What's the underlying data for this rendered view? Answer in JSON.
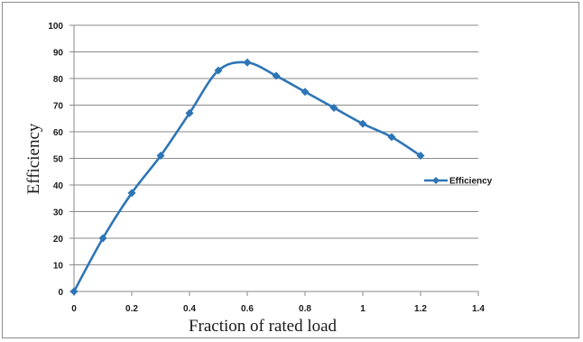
{
  "chart_data": {
    "type": "line",
    "xlabel": "Fraction of rated load",
    "ylabel": "Efficiency",
    "xlim": [
      0,
      1.4
    ],
    "ylim": [
      0,
      100
    ],
    "xticks": [
      "0",
      "0.2",
      "0.4",
      "0.6",
      "0.8",
      "1",
      "1.2",
      "1.4"
    ],
    "yticks": [
      "0",
      "10",
      "20",
      "30",
      "40",
      "50",
      "60",
      "70",
      "80",
      "90",
      "100"
    ],
    "grid": "horizontal",
    "legend_position": "right",
    "series": [
      {
        "name": "Efficiency",
        "color": "#2e75b6",
        "marker": "diamond",
        "x": [
          0,
          0.1,
          0.2,
          0.3,
          0.4,
          0.5,
          0.6,
          0.7,
          0.8,
          0.9,
          1.0,
          1.1,
          1.2
        ],
        "y": [
          0,
          20,
          37,
          51,
          67,
          83,
          86,
          81,
          75,
          69,
          63,
          58,
          51
        ]
      }
    ]
  }
}
